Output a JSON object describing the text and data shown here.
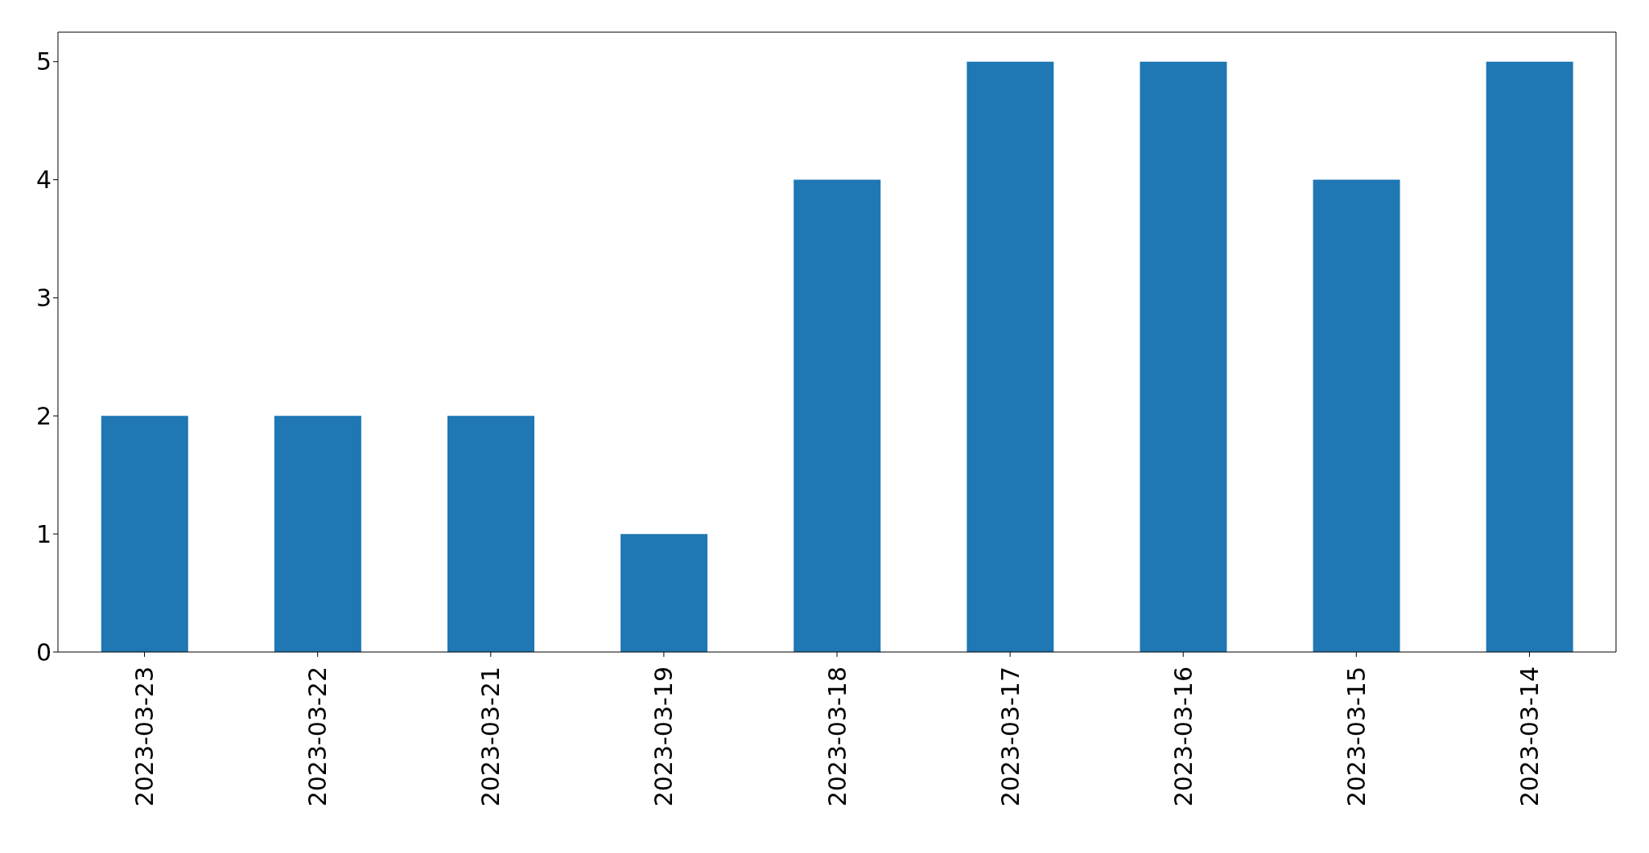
{
  "chart_data": {
    "type": "bar",
    "categories": [
      "2023-03-23",
      "2023-03-22",
      "2023-03-21",
      "2023-03-19",
      "2023-03-18",
      "2023-03-17",
      "2023-03-16",
      "2023-03-15",
      "2023-03-14"
    ],
    "values": [
      2,
      2,
      2,
      1,
      4,
      5,
      5,
      4,
      5
    ],
    "color": "#1f77b4",
    "ylim": [
      0,
      5.25
    ],
    "yticks": [
      0,
      1,
      2,
      3,
      4,
      5
    ],
    "grid": false
  }
}
